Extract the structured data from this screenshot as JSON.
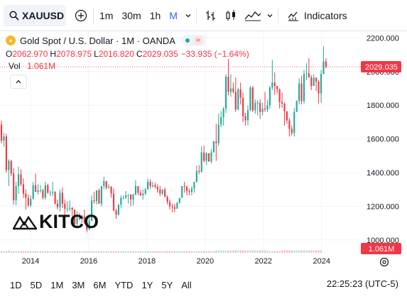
{
  "toolbar": {
    "symbol": "XAUUSD",
    "intervals": [
      "1m",
      "30m",
      "1h",
      "M"
    ],
    "indicators_label": "Indicators"
  },
  "legend": {
    "title": "Gold Spot / U.S. Dollar · 1M · OANDA",
    "o_label": "O",
    "o": "2062.970",
    "h_label": "H",
    "h": "2078.975",
    "l_label": "L",
    "l": "2016.820",
    "c_label": "C",
    "c": "2029.035",
    "change": "−33.935 (−1.64%)",
    "vol_label": "Vol",
    "vol": "1.061M"
  },
  "ranges": [
    "1D",
    "5D",
    "1M",
    "3M",
    "6M",
    "YTD",
    "1Y",
    "5Y",
    "All"
  ],
  "clock": "22:25:23 (UTC-5)",
  "watermark": "KITCO",
  "colors": {
    "up": "#22ab94",
    "down": "#f23645",
    "accent": "#2962ff"
  },
  "chart_data": {
    "type": "candlestick",
    "y_ticks": [
      "2200.000",
      "2000.000",
      "1800.000",
      "1600.000",
      "1400.000",
      "1200.000",
      "1000.000"
    ],
    "y_range": [
      940,
      2240
    ],
    "x_ticks": [
      "2014",
      "2016",
      "2018",
      "2020",
      "2022",
      "2024"
    ],
    "last_price_label": "2029.035",
    "volume_label": "1.061M",
    "x_start": 2013.0,
    "x_end": 2024.15,
    "x_range": [
      2013.0,
      2025.25
    ],
    "series_ohlc": [
      [
        1685,
        1710,
        1575,
        1590
      ],
      [
        1590,
        1635,
        1555,
        1615
      ],
      [
        1615,
        1630,
        1400,
        1415
      ],
      [
        1415,
        1480,
        1320,
        1470
      ],
      [
        1470,
        1475,
        1380,
        1395
      ],
      [
        1395,
        1425,
        1210,
        1235
      ],
      [
        1235,
        1345,
        1205,
        1320
      ],
      [
        1320,
        1435,
        1275,
        1390
      ],
      [
        1390,
        1420,
        1320,
        1330
      ],
      [
        1330,
        1365,
        1250,
        1275
      ],
      [
        1275,
        1300,
        1180,
        1250
      ],
      [
        1250,
        1270,
        1195,
        1205
      ],
      [
        1205,
        1265,
        1195,
        1245
      ],
      [
        1245,
        1345,
        1240,
        1325
      ],
      [
        1325,
        1395,
        1305,
        1285
      ],
      [
        1285,
        1330,
        1270,
        1295
      ],
      [
        1295,
        1325,
        1280,
        1295
      ],
      [
        1295,
        1305,
        1240,
        1250
      ],
      [
        1250,
        1345,
        1240,
        1325
      ],
      [
        1325,
        1335,
        1275,
        1280
      ],
      [
        1280,
        1295,
        1260,
        1280
      ],
      [
        1280,
        1345,
        1260,
        1285
      ],
      [
        1285,
        1290,
        1210,
        1215
      ],
      [
        1215,
        1240,
        1180,
        1195
      ],
      [
        1195,
        1300,
        1170,
        1280
      ],
      [
        1280,
        1310,
        1190,
        1215
      ],
      [
        1215,
        1240,
        1140,
        1185
      ],
      [
        1185,
        1230,
        1165,
        1185
      ],
      [
        1185,
        1235,
        1170,
        1190
      ],
      [
        1190,
        1195,
        1140,
        1180
      ],
      [
        1180,
        1175,
        1085,
        1095
      ],
      [
        1095,
        1170,
        1080,
        1130
      ],
      [
        1130,
        1160,
        1115,
        1125
      ],
      [
        1125,
        1150,
        1100,
        1140
      ],
      [
        1140,
        1180,
        1095,
        1105
      ],
      [
        1105,
        1110,
        1045,
        1060
      ],
      [
        1060,
        1150,
        1075,
        1115
      ],
      [
        1115,
        1265,
        1110,
        1235
      ],
      [
        1235,
        1285,
        1215,
        1230
      ],
      [
        1230,
        1260,
        1210,
        1295
      ],
      [
        1295,
        1305,
        1230,
        1215
      ],
      [
        1215,
        1320,
        1200,
        1320
      ],
      [
        1320,
        1375,
        1300,
        1350
      ],
      [
        1350,
        1345,
        1300,
        1310
      ],
      [
        1310,
        1330,
        1305,
        1315
      ],
      [
        1315,
        1320,
        1250,
        1275
      ],
      [
        1275,
        1305,
        1170,
        1175
      ],
      [
        1175,
        1185,
        1125,
        1150
      ],
      [
        1150,
        1210,
        1145,
        1210
      ],
      [
        1210,
        1265,
        1190,
        1250
      ],
      [
        1250,
        1265,
        1240,
        1250
      ],
      [
        1250,
        1290,
        1245,
        1265
      ],
      [
        1265,
        1270,
        1215,
        1270
      ],
      [
        1270,
        1255,
        1200,
        1240
      ],
      [
        1240,
        1275,
        1205,
        1270
      ],
      [
        1270,
        1355,
        1265,
        1320
      ],
      [
        1320,
        1300,
        1265,
        1280
      ],
      [
        1280,
        1295,
        1260,
        1265
      ],
      [
        1265,
        1300,
        1240,
        1275
      ],
      [
        1275,
        1310,
        1265,
        1300
      ],
      [
        1300,
        1365,
        1300,
        1345
      ],
      [
        1345,
        1360,
        1305,
        1320
      ],
      [
        1320,
        1345,
        1310,
        1325
      ],
      [
        1325,
        1340,
        1305,
        1315
      ],
      [
        1315,
        1330,
        1280,
        1300
      ],
      [
        1300,
        1320,
        1260,
        1275
      ],
      [
        1275,
        1300,
        1265,
        1300
      ],
      [
        1300,
        1310,
        1260,
        1255
      ],
      [
        1255,
        1265,
        1210,
        1225
      ],
      [
        1225,
        1240,
        1180,
        1200
      ],
      [
        1200,
        1215,
        1165,
        1195
      ],
      [
        1195,
        1215,
        1165,
        1185
      ],
      [
        1185,
        1225,
        1185,
        1220
      ],
      [
        1220,
        1245,
        1215,
        1250
      ],
      [
        1250,
        1295,
        1250,
        1320
      ],
      [
        1320,
        1345,
        1280,
        1315
      ],
      [
        1315,
        1325,
        1265,
        1290
      ],
      [
        1290,
        1305,
        1265,
        1285
      ],
      [
        1285,
        1320,
        1265,
        1305
      ],
      [
        1305,
        1345,
        1280,
        1345
      ],
      [
        1345,
        1440,
        1340,
        1410
      ],
      [
        1410,
        1445,
        1390,
        1405
      ],
      [
        1405,
        1555,
        1400,
        1520
      ],
      [
        1520,
        1560,
        1460,
        1470
      ],
      [
        1470,
        1520,
        1445,
        1515
      ],
      [
        1515,
        1515,
        1475,
        1465
      ],
      [
        1465,
        1540,
        1455,
        1520
      ],
      [
        1520,
        1590,
        1520,
        1585
      ],
      [
        1585,
        1690,
        1470,
        1575
      ],
      [
        1575,
        1750,
        1560,
        1685
      ],
      [
        1685,
        1765,
        1670,
        1730
      ],
      [
        1730,
        1790,
        1680,
        1780
      ],
      [
        1780,
        1985,
        1755,
        1970
      ],
      [
        1970,
        2075,
        1860,
        1880
      ],
      [
        1880,
        1985,
        1850,
        1900
      ],
      [
        1900,
        1935,
        1870,
        1880
      ],
      [
        1880,
        1965,
        1760,
        1775
      ],
      [
        1775,
        1905,
        1770,
        1895
      ],
      [
        1895,
        1935,
        1805,
        1845
      ],
      [
        1845,
        1875,
        1700,
        1735
      ],
      [
        1735,
        1755,
        1680,
        1710
      ],
      [
        1710,
        1800,
        1680,
        1770
      ],
      [
        1770,
        1915,
        1765,
        1905
      ],
      [
        1905,
        1915,
        1760,
        1770
      ],
      [
        1770,
        1835,
        1750,
        1815
      ],
      [
        1815,
        1830,
        1740,
        1815
      ],
      [
        1815,
        1835,
        1720,
        1760
      ],
      [
        1760,
        1815,
        1740,
        1780
      ],
      [
        1780,
        1880,
        1760,
        1775
      ],
      [
        1775,
        1830,
        1760,
        1800
      ],
      [
        1800,
        1915,
        1780,
        1905
      ],
      [
        1905,
        2070,
        1890,
        1935
      ],
      [
        1935,
        1995,
        1860,
        1915
      ],
      [
        1915,
        1915,
        1870,
        1895
      ],
      [
        1895,
        1900,
        1780,
        1820
      ],
      [
        1820,
        1875,
        1785,
        1810
      ],
      [
        1810,
        1815,
        1680,
        1765
      ],
      [
        1765,
        1765,
        1690,
        1710
      ],
      [
        1710,
        1725,
        1615,
        1660
      ],
      [
        1660,
        1680,
        1620,
        1635
      ],
      [
        1635,
        1785,
        1615,
        1760
      ],
      [
        1760,
        1830,
        1770,
        1825
      ],
      [
        1825,
        1960,
        1805,
        1930
      ],
      [
        1930,
        1975,
        1805,
        1825
      ],
      [
        1825,
        2010,
        1810,
        1985
      ],
      [
        1985,
        2050,
        1950,
        1990
      ],
      [
        1990,
        2080,
        1970,
        1965
      ],
      [
        1965,
        1980,
        1890,
        1915
      ],
      [
        1915,
        1985,
        1915,
        1965
      ],
      [
        1965,
        1950,
        1885,
        1940
      ],
      [
        1940,
        1950,
        1810,
        1870
      ],
      [
        1870,
        2010,
        1815,
        1985
      ],
      [
        1985,
        2150,
        1990,
        2060
      ],
      [
        2060,
        2080,
        2020,
        2029
      ]
    ],
    "volume": [
      0.02,
      0.02,
      0.02,
      0.03,
      0.02,
      0.02,
      0.02,
      0.02,
      0.02,
      0.02,
      0.02,
      0.02,
      0.02,
      0.02,
      0.02,
      0.02,
      0.02,
      0.02,
      0.02,
      0.02,
      0.02,
      0.02,
      0.02,
      0.02,
      0.02,
      0.02,
      0.02,
      0.02,
      0.02,
      0.02,
      0.02,
      0.02,
      0.02,
      0.02,
      0.02,
      0.02,
      0.02,
      0.02,
      0.02,
      0.02,
      0.02,
      0.02,
      0.02,
      0.02,
      0.02,
      0.02,
      0.02,
      0.02,
      0.02,
      0.02,
      0.02,
      0.02,
      0.02,
      0.02,
      0.02,
      0.02,
      0.02,
      0.02,
      0.02,
      0.02,
      0.02,
      0.02,
      0.02,
      0.02,
      0.02,
      0.02,
      0.02,
      0.02,
      0.02,
      0.02,
      0.02,
      0.02,
      0.02,
      0.02,
      0.02,
      0.02,
      0.02,
      0.02,
      0.02,
      0.02,
      0.02,
      0.02,
      0.02,
      0.02,
      0.02,
      0.02,
      0.02,
      0.02,
      0.03,
      0.03,
      0.03,
      0.03,
      0.03,
      0.03,
      0.03,
      0.03,
      0.03,
      0.03,
      0.03,
      0.03,
      0.03,
      0.03,
      0.03,
      0.03,
      0.03,
      0.03,
      0.03,
      0.03,
      0.03,
      0.03,
      0.02,
      0.02,
      0.02,
      0.02,
      0.02,
      0.03,
      0.03,
      0.03,
      0.03,
      0.03,
      0.03,
      0.03,
      0.03,
      0.03,
      0.03,
      0.03,
      0.03,
      0.03,
      0.03,
      0.03,
      0.03,
      0.03
    ]
  }
}
